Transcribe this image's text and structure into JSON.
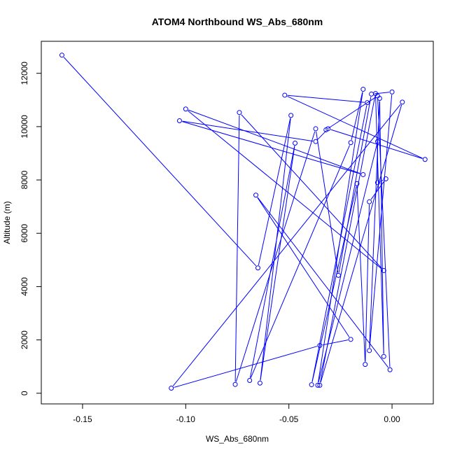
{
  "chart_data": {
    "type": "line",
    "title": "ATOM4 Northbound WS_Abs_680nm",
    "xlabel": "WS_Abs_680nm",
    "ylabel": "Altitude (m)",
    "xlim": [
      -0.17,
      0.02
    ],
    "ylim": [
      -400,
      13200
    ],
    "x_ticks": [
      -0.15,
      -0.1,
      -0.05,
      0.0
    ],
    "x_tick_labels": [
      "-0.15",
      "-0.10",
      "-0.05",
      "0.00"
    ],
    "y_ticks": [
      0,
      2000,
      4000,
      6000,
      8000,
      10000,
      12000
    ],
    "y_tick_labels": [
      "0",
      "2000",
      "4000",
      "6000",
      "8000",
      "10000",
      "12000"
    ],
    "grid": false,
    "series": [
      {
        "color": "#0000ff",
        "marker": "open-circle",
        "points": [
          [
            -0.16,
            12680
          ],
          [
            -0.065,
            4700
          ],
          [
            -0.049,
            10420
          ],
          [
            -0.064,
            380
          ],
          [
            -0.047,
            9380
          ],
          [
            -0.069,
            480
          ],
          [
            -0.02,
            9400
          ],
          [
            -0.014,
            11400
          ],
          [
            -0.036,
            300
          ],
          [
            -0.007,
            9440
          ],
          [
            -0.007,
            7900
          ],
          [
            -0.003,
            8040
          ],
          [
            -0.011,
            7180
          ],
          [
            -0.013,
            1080
          ],
          [
            -0.017,
            7860
          ],
          [
            -0.039,
            320
          ],
          [
            -0.012,
            10900
          ],
          [
            -0.052,
            11180
          ],
          [
            0.016,
            8770
          ],
          [
            -0.031,
            9920
          ],
          [
            -0.037,
            9440
          ],
          [
            -0.103,
            10220
          ],
          [
            -0.014,
            8200
          ],
          [
            -0.1,
            10660
          ],
          [
            -0.004,
            4600
          ],
          [
            -0.074,
            10530
          ],
          [
            -0.076,
            330
          ],
          [
            -0.037,
            9920
          ],
          [
            -0.026,
            4420
          ],
          [
            -0.01,
            11220
          ],
          [
            0.0,
            11300
          ],
          [
            -0.011,
            1600
          ],
          [
            -0.006,
            11060
          ],
          [
            -0.004,
            1380
          ],
          [
            -0.008,
            11240
          ],
          [
            -0.035,
            300
          ],
          [
            0.005,
            10920
          ],
          [
            -0.107,
            190
          ],
          [
            -0.035,
            1790
          ],
          [
            -0.02,
            2020
          ],
          [
            -0.066,
            7430
          ],
          [
            -0.001,
            880
          ],
          [
            -0.007,
            11150
          ],
          [
            -0.032,
            9880
          ]
        ]
      }
    ]
  }
}
